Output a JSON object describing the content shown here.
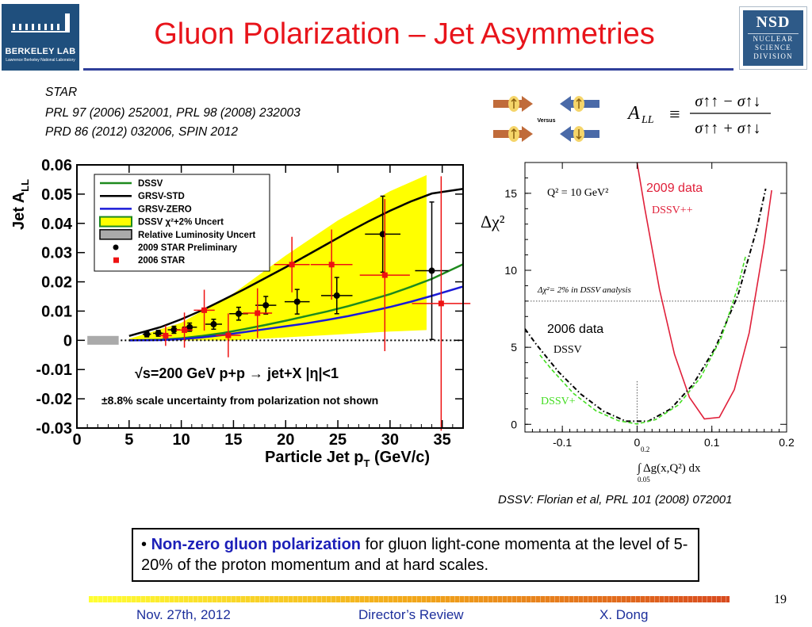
{
  "header": {
    "title": "Gluon Polarization – Jet Asymmetries",
    "logo_left_text": "BERKELEY LAB",
    "logo_left_sub": "Lawrence Berkeley National Laboratory",
    "logo_right_title": "NSD",
    "logo_right_lines": [
      "NUCLEAR",
      "SCIENCE",
      "DIVISION"
    ]
  },
  "references": [
    "STAR",
    "PRL 97 (2006) 252001, PRL 98 (2008) 232003",
    "PRD 86 (2012) 032006, SPIN 2012"
  ],
  "schematic": {
    "versus_label": "Versus"
  },
  "formula": {
    "lhs": "A",
    "lhs_sub": "LL",
    "equiv": "≡",
    "numerator": "σ↑↑ − σ↑↓",
    "denominator": "σ↑↑ + σ↑↓"
  },
  "dssv_reference": "DSSV: Florian et al, PRL 101 (2008) 072001",
  "bullet": {
    "marker": "•",
    "highlight": "Non-zero gluon polarization",
    "text": " for gluon light-cone momenta at the level of 5-20% of the proton momentum and at hard scales."
  },
  "footer": {
    "date": "Nov. 27th, 2012",
    "event": "Director’s Review",
    "author": "X. Dong",
    "page": "19"
  },
  "colors": {
    "title_red": "#e8141b",
    "footer_blue": "#1d2f9c",
    "rule_blue": "#2f3f9a",
    "dssv_green": "#1e8a1e",
    "grsv_zero_blue": "#1a1ad8",
    "band_yellow": "#ffff00",
    "star2006_red": "#ee1111",
    "dssv_pp_red": "#e0203a",
    "dssv_plus_green": "#44dd22"
  },
  "chart_data": [
    {
      "type": "scatter",
      "title": "",
      "xlabel": "Particle Jet p",
      "xlabel_sub": "T",
      "xlabel_unit": " (GeV/c)",
      "ylabel": "Jet A",
      "ylabel_sub": "LL",
      "xlim": [
        0,
        37
      ],
      "ylim": [
        -0.03,
        0.06
      ],
      "x_ticks": [
        0,
        5,
        10,
        15,
        20,
        25,
        30,
        35
      ],
      "y_ticks": [
        -0.03,
        -0.02,
        -0.01,
        0,
        0.01,
        0.02,
        0.03,
        0.04,
        0.05,
        0.06
      ],
      "y_tick_labels": [
        "-0.03",
        "-0.02",
        "-0.01",
        "0",
        "0.01",
        "0.02",
        "0.03",
        "0.04",
        "0.05",
        "0.06"
      ],
      "legend": {
        "placement": "top-left",
        "entries": [
          "DSSV",
          "GRSV-STD",
          "GRSV-ZERO",
          "DSSV χ²+2% Uncert",
          "Relative Luminosity Uncert",
          "2009 STAR Preliminary",
          "2006 STAR"
        ]
      },
      "annotations": [
        "√s=200 GeV   p+p → jet+X   |η|<1",
        "±8.8% scale uncertainty from polarization not shown"
      ],
      "curves": [
        {
          "name": "DSSV",
          "x": [
            5,
            8,
            10,
            12,
            14,
            16,
            18,
            20,
            22,
            24,
            26,
            28,
            30,
            32,
            34,
            37
          ],
          "y": [
            0,
            0.0002,
            0.0007,
            0.0015,
            0.0025,
            0.0038,
            0.0052,
            0.0067,
            0.0083,
            0.0099,
            0.0117,
            0.0137,
            0.0158,
            0.0183,
            0.021,
            0.026
          ]
        },
        {
          "name": "GRSV-STD",
          "x": [
            5,
            8,
            10,
            12,
            14,
            16,
            18,
            20,
            22,
            24,
            26,
            28,
            30,
            32,
            34,
            37
          ],
          "y": [
            0.0015,
            0.0045,
            0.0072,
            0.0103,
            0.0138,
            0.0174,
            0.0212,
            0.025,
            0.029,
            0.033,
            0.037,
            0.0408,
            0.0443,
            0.0475,
            0.0502,
            0.0518
          ]
        },
        {
          "name": "GRSV-ZERO",
          "x": [
            5,
            8,
            10,
            12,
            14,
            16,
            18,
            20,
            22,
            24,
            26,
            28,
            30,
            32,
            34,
            37
          ],
          "y": [
            0,
            0.0001,
            0.0004,
            0.001,
            0.0018,
            0.0028,
            0.0038,
            0.0048,
            0.0058,
            0.007,
            0.0083,
            0.0098,
            0.0114,
            0.0132,
            0.0152,
            0.0184
          ]
        },
        {
          "name": "DSSV χ²+2% Uncert",
          "type": "band",
          "x": [
            5,
            10,
            15,
            20,
            25,
            30,
            33.5
          ],
          "upper": [
            0.0005,
            0.006,
            0.016,
            0.029,
            0.041,
            0.051,
            0.0565
          ],
          "lower": [
            0,
            0,
            0,
            0.001,
            0.002,
            0.003,
            0.0035
          ]
        },
        {
          "name": "Relative Luminosity Uncert",
          "type": "band",
          "x": [
            1,
            4
          ],
          "upper": [
            0.0015,
            0.0015
          ],
          "lower": [
            -0.0015,
            -0.0015
          ]
        }
      ],
      "series": [
        {
          "name": "2009 STAR Preliminary",
          "points": [
            {
              "x": 6.7,
              "y": 0.0021,
              "yerr": 0.0009,
              "xerr": 0.4
            },
            {
              "x": 7.8,
              "y": 0.0024,
              "yerr": 0.001,
              "xerr": 0.5
            },
            {
              "x": 9.3,
              "y": 0.0036,
              "yerr": 0.0012,
              "xerr": 0.6
            },
            {
              "x": 10.8,
              "y": 0.0045,
              "yerr": 0.0014,
              "xerr": 0.7
            },
            {
              "x": 13.1,
              "y": 0.0055,
              "yerr": 0.0017,
              "xerr": 0.8
            },
            {
              "x": 15.5,
              "y": 0.0091,
              "yerr": 0.0022,
              "xerr": 0.9
            },
            {
              "x": 18.1,
              "y": 0.012,
              "yerr": 0.003,
              "xerr": 1.0
            },
            {
              "x": 21.1,
              "y": 0.0132,
              "yerr": 0.0042,
              "xerr": 1.2
            },
            {
              "x": 24.9,
              "y": 0.0153,
              "yerr": 0.0062,
              "xerr": 1.5
            },
            {
              "x": 29.3,
              "y": 0.0363,
              "yerr": 0.013,
              "xerr": 1.7
            },
            {
              "x": 34.0,
              "y": 0.0238,
              "yerr": 0.0235,
              "xerr": 1.6
            }
          ]
        },
        {
          "name": "2006 STAR",
          "points": [
            {
              "x": 8.5,
              "y": 0.0016,
              "yerr": 0.0035,
              "xerr": 0.6
            },
            {
              "x": 10.3,
              "y": 0.0035,
              "yerr": 0.006,
              "xerr": 0.8
            },
            {
              "x": 12.2,
              "y": 0.0103,
              "yerr": 0.007,
              "xerr": 1.0
            },
            {
              "x": 14.5,
              "y": 0.0017,
              "yerr": 0.0075,
              "xerr": 1.2
            },
            {
              "x": 17.3,
              "y": 0.0093,
              "yerr": 0.0085,
              "xerr": 1.4
            },
            {
              "x": 20.6,
              "y": 0.0259,
              "yerr": 0.0095,
              "xerr": 1.7
            },
            {
              "x": 24.4,
              "y": 0.0259,
              "yerr": 0.012,
              "xerr": 2.0
            },
            {
              "x": 29.5,
              "y": 0.0223,
              "yerr": 0.026,
              "xerr": 2.4
            },
            {
              "x": 34.9,
              "y": 0.0126,
              "yerr": 0.0435,
              "xerr": 2.8
            }
          ]
        }
      ]
    },
    {
      "type": "line",
      "title": "",
      "xlabel": "∫ Δg(x,Q²) dx",
      "xlabel_int_upper": "0.2",
      "xlabel_int_lower": "0.05",
      "ylabel": "Δχ²",
      "xlim": [
        -0.15,
        0.2
      ],
      "ylim": [
        -0.5,
        17
      ],
      "x_ticks": [
        -0.1,
        0,
        0.1,
        0.2
      ],
      "x_tick_labels": [
        "-0.1",
        "0",
        "0.1",
        "0.2"
      ],
      "y_ticks": [
        0,
        5,
        10,
        15
      ],
      "y_tick_labels": [
        "0",
        "5",
        "10",
        "15"
      ],
      "annotations": [
        "Q² = 10 GeV²",
        "Δχ²= 2% in DSSV analysis",
        "2009 data",
        "2006 data"
      ],
      "threshold": {
        "label": "Δχ²= 2% in DSSV analysis",
        "y": 8
      },
      "curves": [
        {
          "name": "DSSV++",
          "x": [
            0.0,
            0.02,
            0.04,
            0.06,
            0.08,
            0.1,
            0.12,
            0.14,
            0.16,
            0.18
          ],
          "y": [
            17,
            11.2,
            6.3,
            2.8,
            0.7,
            0.0,
            0.9,
            3.6,
            8.3,
            15.2
          ]
        },
        {
          "name": "DSSV",
          "x": [
            -0.15,
            -0.12,
            -0.09,
            -0.06,
            -0.03,
            0.0,
            0.03,
            0.06,
            0.09,
            0.12,
            0.15,
            0.172
          ],
          "y": [
            6.2,
            4.2,
            2.6,
            1.3,
            0.4,
            0.0,
            0.4,
            1.6,
            3.6,
            6.4,
            10.4,
            15.3
          ]
        },
        {
          "name": "DSSV+",
          "x": [
            -0.13,
            -0.1,
            -0.07,
            -0.04,
            -0.01,
            0.01,
            0.04,
            0.07,
            0.1,
            0.125,
            0.145
          ],
          "y": [
            4.5,
            2.7,
            1.3,
            0.45,
            0.02,
            0.02,
            0.6,
            1.9,
            4.2,
            7.0,
            10.9
          ]
        }
      ]
    }
  ]
}
